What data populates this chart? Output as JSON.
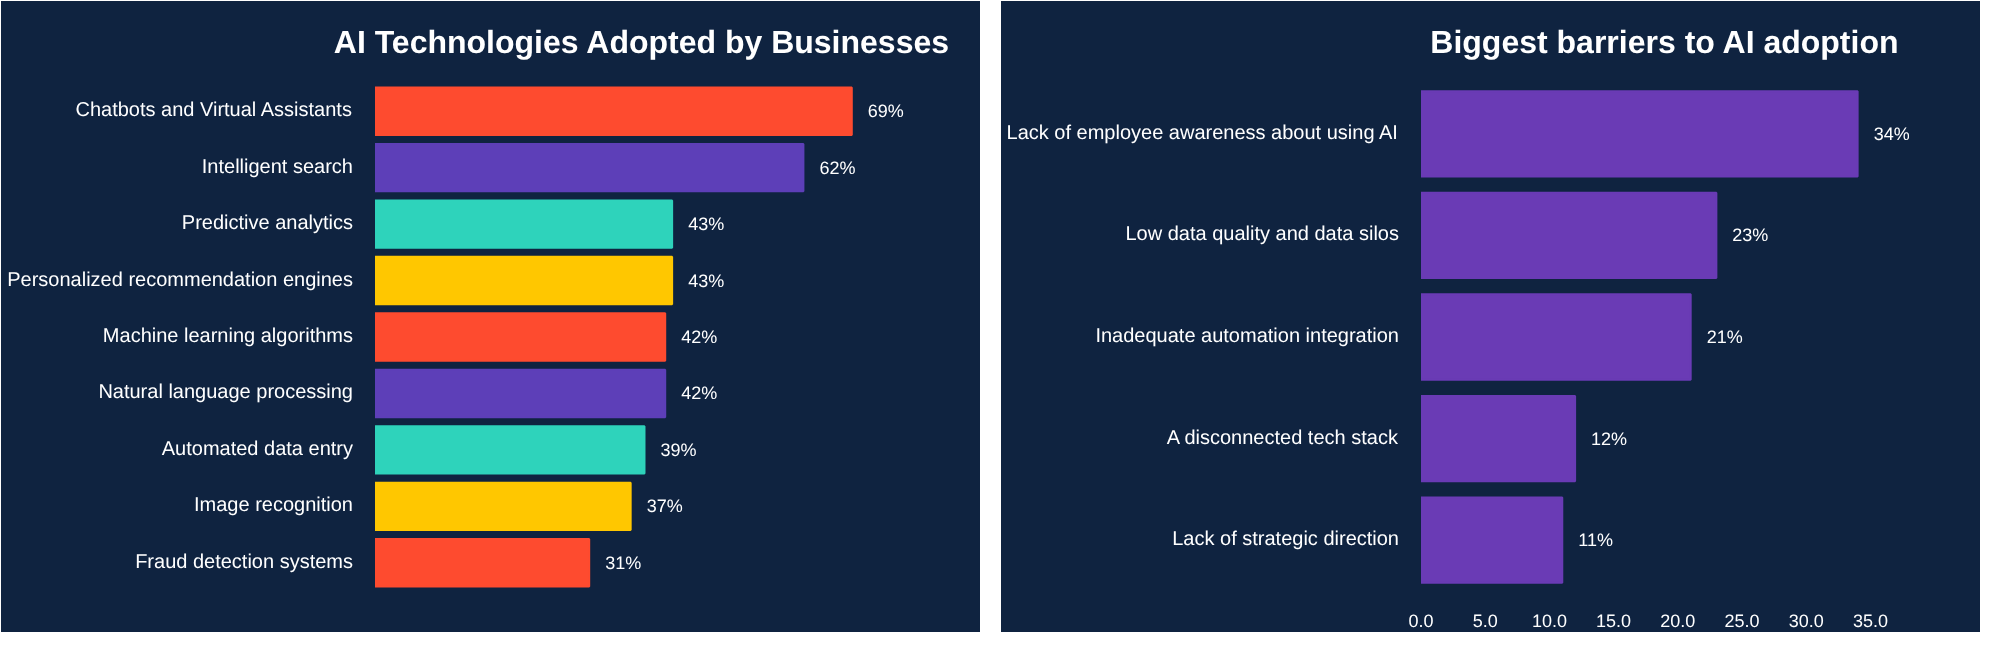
{
  "chart_data": [
    {
      "type": "bar",
      "orientation": "horizontal",
      "title": "AI Technologies Adopted by Businesses",
      "categories": [
        "Chatbots and Virtual Assistants",
        "Intelligent search",
        "Predictive analytics",
        "Personalized recommendation engines",
        "Machine learning algorithms",
        "Natural language processing",
        "Automated data entry",
        "Image recognition",
        "Fraud detection systems"
      ],
      "values": [
        69,
        62,
        43,
        43,
        42,
        42,
        39,
        37,
        31
      ],
      "colors": [
        "#fe4b2f",
        "#5d3fb8",
        "#2ed3bb",
        "#ffc700",
        "#fe4b2f",
        "#5d3fb8",
        "#2ed3bb",
        "#ffc700",
        "#fe4b2f"
      ],
      "value_labels": [
        "69%",
        "62%",
        "43%",
        "43%",
        "42%",
        "42%",
        "39%",
        "37%",
        "31%"
      ],
      "tick_labels": "y",
      "grid": false
    },
    {
      "type": "bar",
      "orientation": "horizontal",
      "title": "Biggest barriers to AI adoption",
      "categories": [
        "Lack of employee awareness about using AI",
        "Low data quality and data silos",
        "Inadequate automation integration",
        "A disconnected tech stack",
        "Lack of strategic direction"
      ],
      "values": [
        34,
        23,
        21,
        12,
        11
      ],
      "color": "#6a3bb5",
      "value_labels": [
        "34%",
        "23%",
        "21%",
        "12%",
        "11%"
      ],
      "xlim": [
        0,
        38
      ],
      "xticks": [
        {
          "value": 0,
          "label": "0.0"
        },
        {
          "value": 5,
          "label": "5.0"
        },
        {
          "value": 10,
          "label": "10.0"
        },
        {
          "value": 15,
          "label": "15.0"
        },
        {
          "value": 20,
          "label": "20.0"
        },
        {
          "value": 25,
          "label": "25.0"
        },
        {
          "value": 30,
          "label": "30.0"
        },
        {
          "value": 35,
          "label": "35.0"
        }
      ],
      "grid": false
    }
  ]
}
